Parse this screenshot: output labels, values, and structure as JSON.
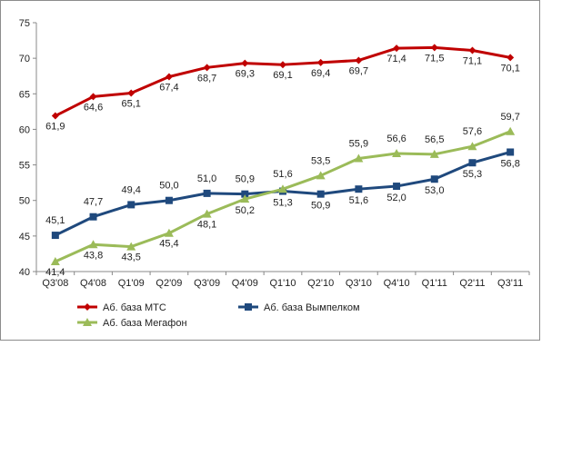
{
  "chart_data": {
    "type": "line",
    "categories": [
      "Q3'08",
      "Q4'08",
      "Q1'09",
      "Q2'09",
      "Q3'09",
      "Q4'09",
      "Q1'10",
      "Q2'10",
      "Q3'10",
      "Q4'10",
      "Q1'11",
      "Q2'11",
      "Q3'11"
    ],
    "ylim": [
      40,
      75
    ],
    "yticks": [
      40,
      45,
      50,
      55,
      60,
      65,
      70,
      75
    ],
    "grid": false,
    "legend_placement": "bottom",
    "series": [
      {
        "name": "Аб. база МТС",
        "color": "#c00000",
        "marker": "diamond",
        "values": [
          61.9,
          64.6,
          65.1,
          67.4,
          68.7,
          69.3,
          69.1,
          69.4,
          69.7,
          71.4,
          71.5,
          71.1,
          70.1
        ],
        "labels": [
          "61,9",
          "64,6",
          "65,1",
          "67,4",
          "68,7",
          "69,3",
          "69,1",
          "69,4",
          "69,7",
          "71,4",
          "71,5",
          "71,1",
          "70,1"
        ]
      },
      {
        "name": "Аб. база Вымпелком",
        "color": "#1f497d",
        "marker": "square",
        "values": [
          45.1,
          47.7,
          49.4,
          50.0,
          51.0,
          50.9,
          51.3,
          50.9,
          51.6,
          52.0,
          53.0,
          55.3,
          56.8
        ],
        "labels": [
          "45,1",
          "47,7",
          "49,4",
          "50,0",
          "51,0",
          "50,9",
          "51,3",
          "50,9",
          "51,6",
          "52,0",
          "53,0",
          "55,3",
          "56,8"
        ]
      },
      {
        "name": "Аб. база Мегафон",
        "color": "#9bbb59",
        "marker": "triangle",
        "values": [
          41.4,
          43.8,
          43.5,
          45.4,
          48.1,
          50.2,
          51.6,
          53.5,
          55.9,
          56.6,
          56.5,
          57.6,
          59.7
        ],
        "labels": [
          "41,4",
          "43,8",
          "43,5",
          "45,4",
          "48,1",
          "50,2",
          "51,6",
          "53,5",
          "55,9",
          "56,6",
          "56,5",
          "57,6",
          "59,7"
        ]
      }
    ]
  }
}
